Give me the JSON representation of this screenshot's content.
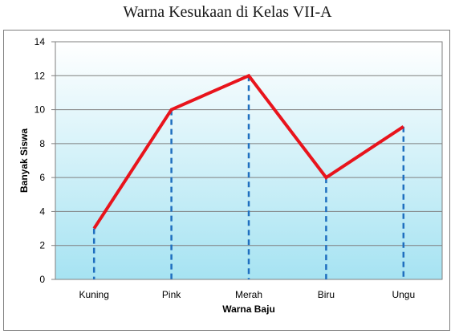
{
  "page": {
    "title": "Warna Kesukaan di Kelas VII-A"
  },
  "chart_data": {
    "type": "line",
    "title": "Warna Kesukaan di Kelas VII-A",
    "xlabel": "Warna Baju",
    "ylabel": "Banyak Siswa",
    "categories": [
      "Kuning",
      "Pink",
      "Merah",
      "Biru",
      "Ungu"
    ],
    "values": [
      3,
      10,
      12,
      6,
      9
    ],
    "ylim": [
      0,
      14
    ],
    "yticks": [
      0,
      2,
      4,
      6,
      8,
      10,
      12,
      14
    ],
    "grid": true,
    "legend": "none",
    "drop_lines": true,
    "colors": {
      "line": "#e8141c",
      "drop": "#1f6fbf",
      "bg_top": "#ffffff",
      "bg_bottom": "#a6e3f2",
      "grid": "#7f7f7f"
    }
  }
}
